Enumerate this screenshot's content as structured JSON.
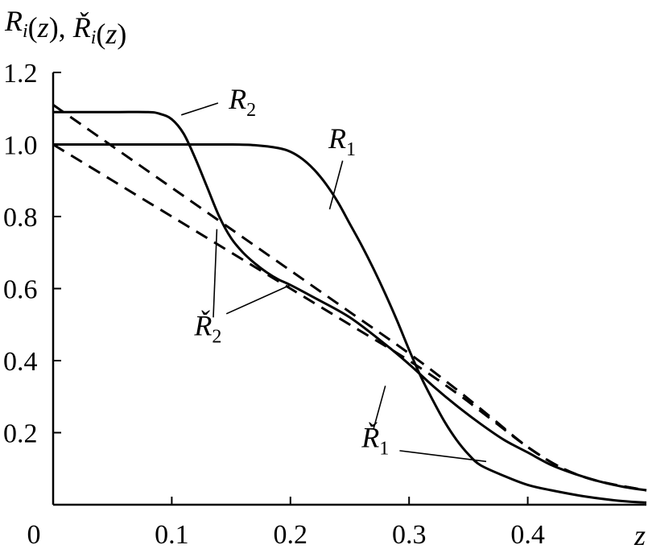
{
  "chart_data": {
    "type": "line",
    "ylabel": "R_i(z), Ř_i(z)",
    "ylabel_parts": [
      {
        "text": "R",
        "italic": true
      },
      {
        "text": "i",
        "sub": true
      },
      {
        "text": "(",
        "italic": false
      },
      {
        "text": "z",
        "italic": true
      },
      {
        "text": "), ",
        "italic": false
      },
      {
        "text": "Ř",
        "italic": true
      },
      {
        "text": "i",
        "sub": true
      },
      {
        "text": "(",
        "italic": false
      },
      {
        "text": "z",
        "italic": true
      },
      {
        "text": ")",
        "italic": false
      }
    ],
    "xlabel": "z",
    "xlim": [
      0,
      0.5
    ],
    "ylim": [
      0,
      1.2
    ],
    "xticks": [
      0,
      0.1,
      0.2,
      0.3,
      0.4
    ],
    "xtick_labels": [
      "0",
      "0.1",
      "0.2",
      "0.3",
      "0.4"
    ],
    "yticks": [
      0.2,
      0.4,
      0.6,
      0.8,
      1.0,
      1.2
    ],
    "ytick_labels": [
      "0.2",
      "0.4",
      "0.6",
      "0.8",
      "1.0",
      "1.2"
    ],
    "grid": false,
    "series": [
      {
        "name": "R1",
        "style": "solid",
        "x": [
          0,
          0.05,
          0.1,
          0.15,
          0.17,
          0.19,
          0.2,
          0.21,
          0.22,
          0.23,
          0.24,
          0.25,
          0.26,
          0.27,
          0.28,
          0.29,
          0.3,
          0.31,
          0.32,
          0.33,
          0.34,
          0.35,
          0.36,
          0.38,
          0.4,
          0.42,
          0.45,
          0.48,
          0.5
        ],
        "y": [
          1.0,
          1.0,
          1.0,
          1.0,
          0.998,
          0.99,
          0.98,
          0.96,
          0.93,
          0.89,
          0.84,
          0.78,
          0.72,
          0.655,
          0.585,
          0.51,
          0.43,
          0.355,
          0.29,
          0.23,
          0.18,
          0.14,
          0.11,
          0.08,
          0.055,
          0.04,
          0.022,
          0.01,
          0.006
        ]
      },
      {
        "name": "R2",
        "style": "solid",
        "x": [
          0,
          0.05,
          0.08,
          0.09,
          0.1,
          0.11,
          0.12,
          0.13,
          0.14,
          0.15,
          0.16,
          0.17,
          0.18,
          0.19,
          0.2,
          0.22,
          0.25,
          0.28,
          0.3,
          0.32,
          0.34,
          0.36,
          0.38,
          0.4,
          0.42,
          0.44,
          0.46,
          0.48,
          0.5
        ],
        "y": [
          1.09,
          1.09,
          1.09,
          1.085,
          1.07,
          1.03,
          0.96,
          0.88,
          0.8,
          0.74,
          0.7,
          0.67,
          0.645,
          0.625,
          0.61,
          0.575,
          0.52,
          0.445,
          0.39,
          0.33,
          0.275,
          0.225,
          0.18,
          0.145,
          0.11,
          0.085,
          0.065,
          0.05,
          0.04
        ]
      },
      {
        "name": "Ř1",
        "style": "dashed",
        "x": [
          0,
          0.05,
          0.1,
          0.15,
          0.2,
          0.25,
          0.3,
          0.34,
          0.37,
          0.4,
          0.43,
          0.46,
          0.5
        ],
        "y": [
          1.0,
          0.9,
          0.8,
          0.7,
          0.6,
          0.5,
          0.4,
          0.31,
          0.235,
          0.16,
          0.1,
          0.065,
          0.04
        ]
      },
      {
        "name": "Ř2",
        "style": "dashed",
        "x": [
          0,
          0.05,
          0.1,
          0.15,
          0.2,
          0.25,
          0.3,
          0.34,
          0.37,
          0.4,
          0.43,
          0.46,
          0.5
        ],
        "y": [
          1.11,
          0.995,
          0.88,
          0.765,
          0.65,
          0.535,
          0.42,
          0.32,
          0.24,
          0.16,
          0.1,
          0.065,
          0.04
        ]
      }
    ],
    "annotations": [
      {
        "label_main": "R",
        "label_sub": "2",
        "accent": false,
        "text_at": [
          0.148,
          1.1
        ],
        "leaders": [
          [
            [
              0.139,
              1.115
            ],
            [
              0.108,
              1.082
            ]
          ]
        ]
      },
      {
        "label_main": "R",
        "label_sub": "1",
        "accent": false,
        "text_at": [
          0.232,
          0.99
        ],
        "leaders": [
          [
            [
              0.244,
              0.955
            ],
            [
              0.233,
              0.82
            ]
          ]
        ]
      },
      {
        "label_main": "Ř",
        "label_sub": "2",
        "accent": true,
        "text_at": [
          0.119,
          0.47
        ],
        "leaders": [
          [
            [
              0.135,
              0.52
            ],
            [
              0.138,
              0.765
            ]
          ],
          [
            [
              0.146,
              0.53
            ],
            [
              0.2,
              0.61
            ]
          ]
        ]
      },
      {
        "label_main": "Ř",
        "label_sub": "1",
        "accent": true,
        "text_at": [
          0.26,
          0.16
        ],
        "leaders": [
          [
            [
              0.27,
              0.21
            ],
            [
              0.28,
              0.33
            ]
          ],
          [
            [
              0.292,
              0.15
            ],
            [
              0.365,
              0.12
            ]
          ]
        ]
      }
    ]
  }
}
